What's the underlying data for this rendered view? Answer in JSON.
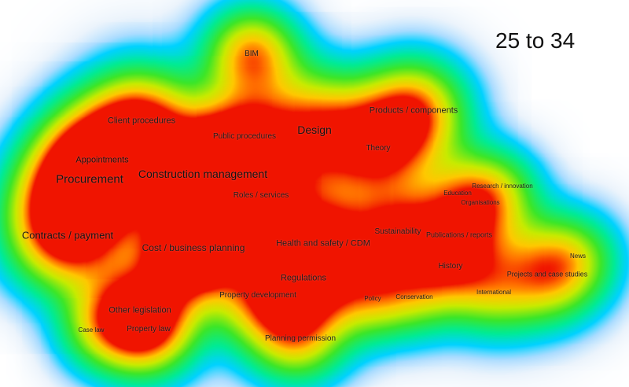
{
  "title": "25 to 34",
  "terms": [
    {
      "label": "BIM",
      "w": 0.55
    },
    {
      "label": "Client procedures",
      "w": 0.55
    },
    {
      "label": "Public procedures",
      "w": 0.45
    },
    {
      "label": "Design",
      "w": 1.0
    },
    {
      "label": "Products / components",
      "w": 0.65
    },
    {
      "label": "Theory",
      "w": 0.45
    },
    {
      "label": "Appointments",
      "w": 1.0
    },
    {
      "label": "Procurement",
      "w": 1.0
    },
    {
      "label": "Construction management",
      "w": 1.0
    },
    {
      "label": "Roles / services",
      "w": 0.5
    },
    {
      "label": "Contracts / payment",
      "w": 1.0
    },
    {
      "label": "Cost / business planning",
      "w": 0.75
    },
    {
      "label": "Health and safety / CDM",
      "w": 0.5
    },
    {
      "label": "Sustainability",
      "w": 0.5
    },
    {
      "label": "Publications / reports",
      "w": 0.35
    },
    {
      "label": "Education",
      "w": 0.25
    },
    {
      "label": "Research / innovation",
      "w": 0.25
    },
    {
      "label": "Organisations",
      "w": 0.25
    },
    {
      "label": "History",
      "w": 0.4
    },
    {
      "label": "Regulations",
      "w": 0.5
    },
    {
      "label": "Property development",
      "w": 0.45
    },
    {
      "label": "Other legislation",
      "w": 0.55
    },
    {
      "label": "Property law",
      "w": 0.55
    },
    {
      "label": "Case law",
      "w": 0.2
    },
    {
      "label": "Policy",
      "w": 0.25
    },
    {
      "label": "Conservation",
      "w": 0.25
    },
    {
      "label": "International",
      "w": 0.25
    },
    {
      "label": "News",
      "w": 0.25
    },
    {
      "label": "Projects and case studies",
      "w": 0.35
    },
    {
      "label": "Planning permission",
      "w": 0.45
    }
  ]
}
